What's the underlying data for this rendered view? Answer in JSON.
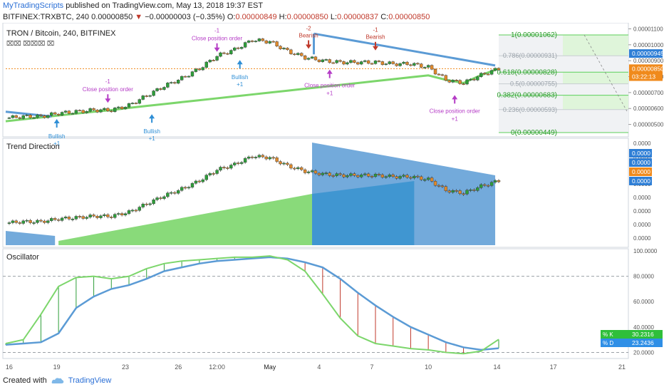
{
  "header": {
    "author": "MyTradingScripts",
    "published_text": "published on TradingView.com, May 13, 2018 19:37 EST",
    "symbol_line": "BITFINEX:TRXBTC, 240",
    "price": "0.00000850",
    "change_arrow": "▼",
    "change": "−0.00000003 (−0.35%)",
    "o_label": "O:",
    "o_val": "0.00000849",
    "h_label": "H:",
    "h_val": "0.00000850",
    "l_label": "L:",
    "l_val": "0.00000837",
    "c_label": "C:",
    "c_val": "0.00000850"
  },
  "pane1": {
    "title": "TRON / Bitcoin, 240, BITFINEX",
    "subtitle": "⌧⌧ ⌧⌧⌧ ⌧",
    "labels": {
      "close_order": "Close position order",
      "bullish": "Bullish",
      "bearish": "Bearish",
      "plus1": "+1",
      "minus1": "-1",
      "minus2": "-2"
    },
    "fib": [
      {
        "label": "1(0.00001062)",
        "price": 1.062e-05,
        "major": true
      },
      {
        "label": "0.786(0.00000931)",
        "price": 9.31e-06,
        "major": false
      },
      {
        "label": "0.618(0.00000828)",
        "price": 8.28e-06,
        "major": true
      },
      {
        "label": "0.5(0.00000755)",
        "price": 7.55e-06,
        "major": false
      },
      {
        "label": "0.382(0.00000683)",
        "price": 6.83e-06,
        "major": true
      },
      {
        "label": "0.236(0.00000593)",
        "price": 5.93e-06,
        "major": false
      },
      {
        "label": "0(0.00000449)",
        "price": 4.49e-06,
        "major": true
      }
    ],
    "axis_ticks": [
      "0.00001100",
      "0.00001000",
      "0.00000900",
      "0.00000800",
      "0.00000700",
      "0.00000600",
      "0.00000500"
    ],
    "badges": [
      {
        "text": "0.00000945",
        "color": "#2f7fd6",
        "price": 9.45e-06
      },
      {
        "text": "0.00000850",
        "color": "#f08a1c",
        "price": 8.5e-06
      },
      {
        "text": "03:22:13",
        "color": "#f08a1c",
        "price": 8e-06
      }
    ]
  },
  "pane2": {
    "title": "Trend Direction",
    "axis_ticks": [
      "0.0000",
      "0.0000",
      "0.0000",
      "0.0000",
      "0.0000",
      "0.0000",
      "0.0000",
      "0.0000"
    ],
    "badges": [
      {
        "text": "0.0000",
        "color": "#2f7fd6"
      },
      {
        "text": "0.0000",
        "color": "#2f7fd6"
      },
      {
        "text": "0.0000",
        "color": "#f08a1c"
      },
      {
        "text": "0.0000",
        "color": "#2f7fd6"
      }
    ]
  },
  "pane3": {
    "title": "Oscillator",
    "axis_ticks": [
      "100.0000",
      "80.0000",
      "60.0000",
      "40.0000",
      "20.0000"
    ],
    "badges": [
      {
        "label": "% K",
        "text": "30.2316",
        "color": "#2fbf3a"
      },
      {
        "label": "% D",
        "text": "23.2436",
        "color": "#2f8fe6"
      }
    ]
  },
  "x_axis": [
    "16",
    "19",
    "23",
    "26",
    "12:00",
    "May",
    "4",
    "7",
    "10",
    "14",
    "17",
    "21"
  ],
  "footer": {
    "created_with": "Created with",
    "brand": "TradingView"
  },
  "colors": {
    "up": "#2e9e3a",
    "down": "#c0392b",
    "trend_blue": "#5b9bd5",
    "trend_green": "#7cd66b",
    "fib_green": "#5ccf5a",
    "orange": "#f08a1c",
    "magenta": "#b53cc6",
    "arrow_blue": "#2f8fd6"
  },
  "chart_data": [
    {
      "type": "line",
      "title": "TRON / Bitcoin, 240, BITFINEX",
      "xlabel": "",
      "ylabel": "",
      "ylim": [
        4.4e-06,
        1.12e-05
      ],
      "x": [
        "16",
        "17",
        "18",
        "19",
        "20",
        "21",
        "22",
        "23",
        "24",
        "25",
        "26",
        "27",
        "28",
        "29",
        "30",
        "May",
        "2",
        "3",
        "4",
        "5",
        "6",
        "7",
        "8",
        "9",
        "10",
        "11",
        "12",
        "13",
        "14"
      ],
      "series": [
        {
          "name": "TRXBTC close",
          "values": [
            5.4e-06,
            5.5e-06,
            5.5e-06,
            5.7e-06,
            5.8e-06,
            5.9e-06,
            5.9e-06,
            6.2e-06,
            6.8e-06,
            7.4e-06,
            7.9e-06,
            8.5e-06,
            9.3e-06,
            9.7e-06,
            1.03e-05,
            1.02e-05,
            9.6e-06,
            9.2e-06,
            9e-06,
            8.9e-06,
            8.9e-06,
            8.9e-06,
            8.8e-06,
            8.8e-06,
            8.6e-06,
            7.8e-06,
            7.6e-06,
            8.1e-06,
            8.5e-06
          ]
        }
      ]
    },
    {
      "type": "line",
      "title": "Oscillator",
      "xlabel": "",
      "ylabel": "",
      "ylim": [
        18,
        100
      ],
      "x": [
        "16",
        "17",
        "18",
        "19",
        "20",
        "21",
        "22",
        "23",
        "24",
        "25",
        "26",
        "27",
        "28",
        "29",
        "30",
        "May",
        "2",
        "3",
        "4",
        "5",
        "6",
        "7",
        "8",
        "9",
        "10",
        "11",
        "12",
        "13",
        "14"
      ],
      "series": [
        {
          "name": "% K",
          "values": [
            27,
            30,
            50,
            72,
            79,
            80,
            78,
            80,
            86,
            90,
            92,
            93,
            94,
            95,
            95,
            96,
            93,
            84,
            66,
            47,
            33,
            27,
            25,
            23,
            22,
            20,
            19,
            21,
            30.2316
          ]
        },
        {
          "name": "% D",
          "values": [
            26,
            27,
            28,
            35,
            55,
            64,
            70,
            73,
            78,
            84,
            87,
            90,
            92,
            93,
            94,
            95,
            94,
            91,
            87,
            78,
            67,
            57,
            48,
            40,
            34,
            28,
            24,
            22,
            23.2436
          ]
        }
      ]
    }
  ]
}
